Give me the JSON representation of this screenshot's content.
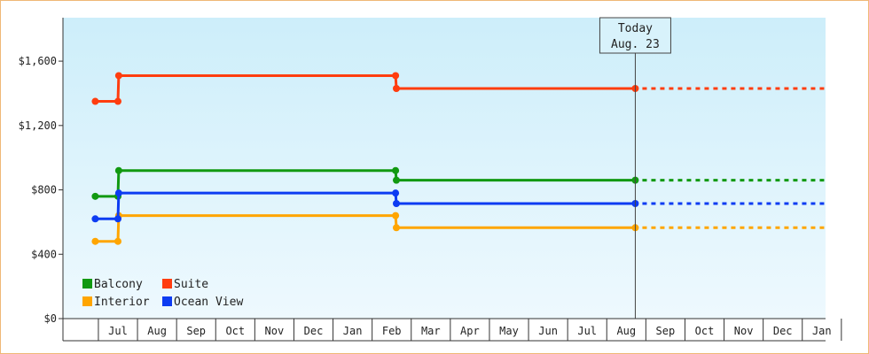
{
  "chart_data": {
    "type": "line",
    "step": true,
    "currency": "$",
    "ylim": [
      0,
      1870
    ],
    "yticks": [
      0,
      400,
      800,
      1200,
      1600
    ],
    "ytick_labels": [
      "$0",
      "$400",
      "$800",
      "$1,200",
      "$1,600"
    ],
    "xtick_labels": [
      "Jul",
      "Aug",
      "Sep",
      "Oct",
      "Nov",
      "Dec",
      "Jan",
      "Feb",
      "Mar",
      "Apr",
      "May",
      "Jun",
      "Jul",
      "Aug",
      "Sep",
      "Oct",
      "Nov",
      "Dec",
      "Jan"
    ],
    "today_label": [
      "Today",
      "Aug. 23"
    ],
    "today_x": 13.23,
    "x_start": -0.58,
    "x_end": 18.55,
    "grid": false,
    "legend_position": "bottom-left",
    "series": [
      {
        "name": "Balcony",
        "color": "#119911",
        "points": [
          [
            -0.58,
            760
          ],
          [
            0.0,
            760
          ],
          [
            0.02,
            920
          ],
          [
            7.1,
            920
          ],
          [
            7.12,
            860
          ],
          [
            13.23,
            860
          ]
        ]
      },
      {
        "name": "Suite",
        "color": "#ff3d0f",
        "points": [
          [
            -0.58,
            1350
          ],
          [
            0.0,
            1350
          ],
          [
            0.02,
            1510
          ],
          [
            7.1,
            1510
          ],
          [
            7.12,
            1430
          ],
          [
            13.23,
            1430
          ]
        ]
      },
      {
        "name": "Interior",
        "color": "#ffa500",
        "points": [
          [
            -0.58,
            480
          ],
          [
            0.0,
            480
          ],
          [
            0.02,
            640
          ],
          [
            7.1,
            640
          ],
          [
            7.12,
            565
          ],
          [
            13.23,
            565
          ]
        ]
      },
      {
        "name": "Ocean View",
        "color": "#0d3cf2",
        "points": [
          [
            -0.58,
            620
          ],
          [
            0.0,
            620
          ],
          [
            0.02,
            780
          ],
          [
            7.1,
            780
          ],
          [
            7.12,
            715
          ],
          [
            13.23,
            715
          ]
        ]
      }
    ]
  }
}
